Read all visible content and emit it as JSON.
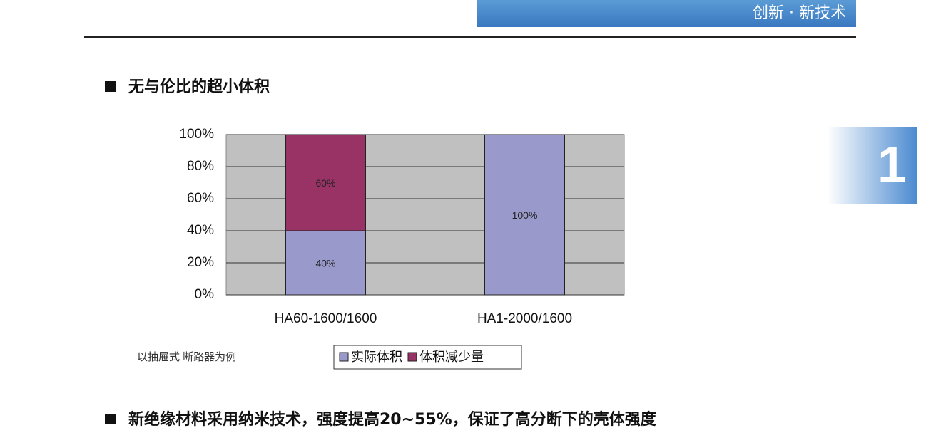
{
  "header": {
    "tag": "创新 · 新技术"
  },
  "page_number": "1",
  "section1": {
    "title": "无与伦比的超小体积"
  },
  "chart_data": {
    "type": "bar",
    "stacked": true,
    "categories": [
      "HA60-1600/1600",
      "HA1-2000/1600"
    ],
    "series": [
      {
        "name": "实际体积",
        "color": "#9999cc",
        "values": [
          40,
          100
        ],
        "value_labels": [
          "40%",
          "100%"
        ]
      },
      {
        "name": "体积减少量",
        "color": "#993366",
        "values": [
          60,
          null
        ],
        "value_labels": [
          "60%",
          null
        ]
      }
    ],
    "ylim": [
      0,
      100
    ],
    "yticks": [
      {
        "value": 0,
        "label": "0%"
      },
      {
        "value": 20,
        "label": "20%"
      },
      {
        "value": 40,
        "label": "40%"
      },
      {
        "value": 60,
        "label": "60%"
      },
      {
        "value": 80,
        "label": "80%"
      },
      {
        "value": 100,
        "label": "100%"
      }
    ],
    "grid": true,
    "legend": "bottom",
    "note": "以抽屉式 断路器为例"
  },
  "section2": {
    "title": "新绝缘材料采用纳米技术，强度提高20~55%，保证了高分断下的壳体强度"
  }
}
